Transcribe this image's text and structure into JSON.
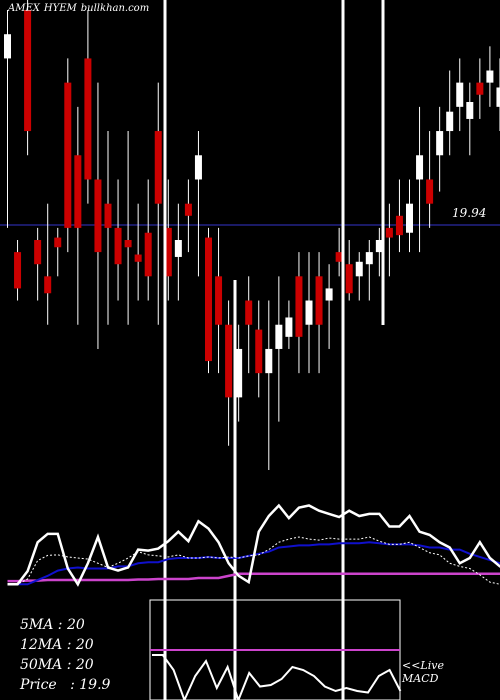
{
  "header": {
    "exchange": "AMEX",
    "symbol": "HYEM",
    "site": "bullkhan.com"
  },
  "price_label": "19.94",
  "stats": [
    {
      "label": "5MA",
      "sep": " : ",
      "value": "20"
    },
    {
      "label": "12MA",
      "sep": " : ",
      "value": "20"
    },
    {
      "label": "50MA",
      "sep": " : ",
      "value": "20"
    },
    {
      "label": "Price",
      "sep": "   : ",
      "value": "19.9"
    }
  ],
  "live_label": "<<Live",
  "macd_label": "MACD",
  "colors": {
    "up": "#ffffff",
    "down": "#cc0000",
    "ma_fast": "#ffffff",
    "ma_slow": "#1010cc",
    "ma_50": "#cc44cc",
    "ref_line": "#1a1a66"
  },
  "chart_data": {
    "type": "candlestick",
    "ylim": [
      19.0,
      20.9
    ],
    "reference_line": 19.94,
    "candles": [
      [
        20.7,
        20.9,
        20.0,
        20.8
      ],
      [
        19.9,
        19.95,
        19.7,
        19.75
      ],
      [
        20.9,
        21.0,
        20.3,
        20.4
      ],
      [
        19.95,
        20.0,
        19.7,
        19.85
      ],
      [
        19.8,
        20.1,
        19.6,
        19.73
      ],
      [
        19.96,
        20.0,
        19.8,
        19.92
      ],
      [
        20.6,
        20.7,
        19.9,
        20.0
      ],
      [
        20.3,
        20.5,
        19.6,
        20.0
      ],
      [
        20.7,
        20.9,
        20.1,
        20.2
      ],
      [
        20.2,
        20.6,
        19.5,
        19.9
      ],
      [
        20.1,
        20.4,
        19.6,
        20.0
      ],
      [
        20.0,
        20.2,
        19.7,
        19.85
      ],
      [
        19.95,
        20.4,
        19.6,
        19.92
      ],
      [
        19.89,
        20.1,
        19.7,
        19.86
      ],
      [
        19.98,
        20.2,
        19.7,
        19.8
      ],
      [
        20.4,
        20.6,
        19.6,
        20.1
      ],
      [
        20.0,
        20.2,
        19.7,
        19.8
      ],
      [
        19.88,
        20.1,
        19.7,
        19.95
      ],
      [
        20.1,
        20.2,
        19.9,
        20.05
      ],
      [
        20.2,
        20.4,
        19.8,
        20.3
      ],
      [
        19.96,
        20.0,
        19.4,
        19.45
      ],
      [
        19.8,
        20.0,
        19.4,
        19.6
      ],
      [
        19.6,
        19.7,
        19.1,
        19.3
      ],
      [
        19.3,
        19.6,
        19.2,
        19.5
      ],
      [
        19.7,
        19.8,
        19.4,
        19.6
      ],
      [
        19.58,
        19.7,
        19.3,
        19.4
      ],
      [
        19.4,
        19.7,
        19.0,
        19.5
      ],
      [
        19.5,
        19.8,
        19.2,
        19.6
      ],
      [
        19.55,
        19.7,
        19.5,
        19.63
      ],
      [
        19.8,
        19.9,
        19.4,
        19.55
      ],
      [
        19.6,
        19.9,
        19.4,
        19.7
      ],
      [
        19.8,
        19.9,
        19.4,
        19.6
      ],
      [
        19.7,
        19.85,
        19.5,
        19.75
      ],
      [
        19.9,
        20.0,
        19.8,
        19.86
      ],
      [
        19.85,
        19.95,
        19.7,
        19.73
      ],
      [
        19.8,
        19.9,
        19.7,
        19.86
      ],
      [
        19.85,
        19.95,
        19.7,
        19.9
      ],
      [
        19.9,
        20.0,
        19.8,
        19.95
      ],
      [
        20.0,
        20.1,
        19.8,
        19.96
      ],
      [
        20.05,
        20.2,
        19.9,
        19.97
      ],
      [
        19.98,
        20.2,
        19.9,
        20.1
      ],
      [
        20.2,
        20.5,
        19.9,
        20.3
      ],
      [
        20.2,
        20.4,
        20.0,
        20.1
      ],
      [
        20.3,
        20.5,
        20.15,
        20.4
      ],
      [
        20.4,
        20.65,
        20.3,
        20.48
      ],
      [
        20.5,
        20.7,
        20.4,
        20.6
      ],
      [
        20.45,
        20.6,
        20.3,
        20.52
      ],
      [
        20.6,
        20.7,
        20.45,
        20.55
      ],
      [
        20.6,
        20.75,
        20.5,
        20.65
      ],
      [
        20.5,
        20.7,
        20.4,
        20.58
      ],
      [
        20.6,
        20.8,
        20.4,
        20.5
      ],
      [
        20.0,
        20.1,
        19.7,
        19.9
      ],
      [
        19.97,
        20.1,
        19.7,
        19.75
      ]
    ],
    "ma_fast": [
      0.3,
      0.3,
      0.4,
      0.75,
      0.85,
      0.86,
      0.82,
      0.8,
      0.78,
      0.7,
      0.62,
      0.7,
      0.8,
      0.92,
      0.86,
      0.84,
      0.82,
      0.86,
      0.8,
      0.8,
      0.82,
      0.8,
      0.82,
      0.8,
      0.84,
      0.86,
      0.96,
      1.1,
      1.16,
      1.2,
      1.16,
      1.14,
      1.18,
      1.16,
      1.16,
      1.16,
      1.2,
      1.12,
      1.06,
      1.06,
      1.1,
      1.0,
      0.9,
      0.86,
      0.7,
      0.64,
      0.6,
      0.48,
      0.34,
      0.3,
      0.28,
      0.3,
      0.35
    ],
    "ma_slow": [
      0.3,
      0.3,
      0.3,
      0.38,
      0.46,
      0.56,
      0.6,
      0.62,
      0.6,
      0.6,
      0.6,
      0.64,
      0.64,
      0.7,
      0.72,
      0.72,
      0.78,
      0.8,
      0.8,
      0.8,
      0.82,
      0.8,
      0.8,
      0.8,
      0.84,
      0.88,
      0.92,
      1.0,
      1.02,
      1.04,
      1.04,
      1.06,
      1.06,
      1.08,
      1.08,
      1.08,
      1.1,
      1.08,
      1.06,
      1.06,
      1.06,
      1.04,
      1.0,
      1.0,
      0.96,
      0.96,
      0.88,
      0.82,
      0.76,
      0.7,
      0.6,
      0.62,
      0.64
    ],
    "ma_50": [
      0.36,
      0.36,
      0.37,
      0.37,
      0.38,
      0.38,
      0.38,
      0.38,
      0.38,
      0.38,
      0.38,
      0.38,
      0.38,
      0.39,
      0.39,
      0.4,
      0.4,
      0.4,
      0.4,
      0.42,
      0.42,
      0.42,
      0.46,
      0.5,
      0.5,
      0.5,
      0.5,
      0.5,
      0.5,
      0.5,
      0.5,
      0.5,
      0.5,
      0.5,
      0.5,
      0.5,
      0.5,
      0.5,
      0.5,
      0.5,
      0.5,
      0.5,
      0.5,
      0.5,
      0.5,
      0.5,
      0.5,
      0.5,
      0.5,
      0.5,
      0.5,
      0.5,
      0.5
    ],
    "price_line": [
      0.3,
      0.3,
      0.55,
      1.1,
      1.26,
      1.26,
      0.6,
      0.3,
      0.7,
      1.2,
      0.62,
      0.56,
      0.62,
      0.96,
      0.94,
      0.98,
      1.12,
      1.3,
      1.12,
      1.5,
      1.36,
      1.1,
      0.7,
      0.46,
      0.34,
      1.3,
      1.6,
      1.8,
      1.56,
      1.76,
      1.8,
      1.7,
      1.64,
      1.58,
      1.7,
      1.6,
      1.64,
      1.64,
      1.4,
      1.4,
      1.6,
      1.3,
      1.24,
      1.1,
      1.0,
      0.7,
      0.8,
      1.1,
      0.8,
      0.64,
      0.56,
      0.6,
      1.2
    ],
    "macd_line": [
      1.5,
      1.5,
      1.0,
      0.0,
      0.8,
      1.3,
      0.4,
      1.1,
      0.0,
      0.9,
      0.45,
      0.5,
      0.7,
      1.1,
      1.0,
      0.8,
      0.45,
      0.3,
      0.4,
      0.3,
      0.25,
      0.8,
      1.0,
      0.3
    ]
  }
}
